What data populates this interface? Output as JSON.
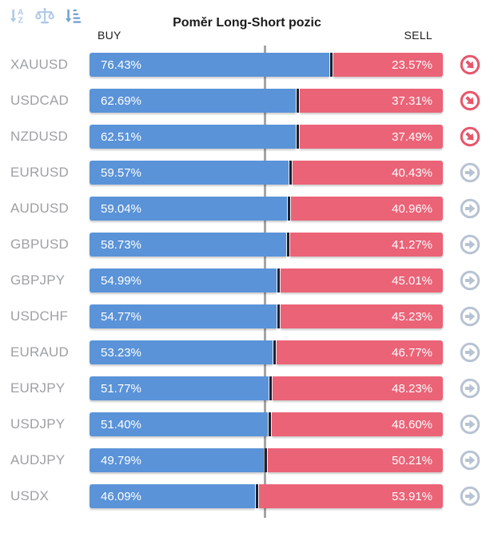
{
  "title": "Poměr Long-Short pozic",
  "columns": {
    "buy": "BUY",
    "sell": "SELL"
  },
  "toolbar": {
    "icons": [
      "sort-alphabetical-icon",
      "balance-scale-icon",
      "sort-by-amount-icon"
    ],
    "active_icon": "sort-by-amount-icon"
  },
  "colors": {
    "buy_bar": "#5A93D8",
    "sell_bar": "#EB6377",
    "bar_divider": "#20202F",
    "trend_down_icon": "#E8566C",
    "trend_neutral_icon": "#B8C3D2",
    "pair_label": "#9EA0A3",
    "center_line": "#A4A4A4"
  },
  "chart_data": {
    "type": "bar",
    "orientation": "horizontal",
    "stacked": true,
    "title": "Poměr Long-Short pozic",
    "xlim": [
      0,
      100
    ],
    "center_marker": 50,
    "legend_position": "top",
    "categories": [
      "XAUUSD",
      "USDCAD",
      "NZDUSD",
      "EURUSD",
      "AUDUSD",
      "GBPUSD",
      "GBPJPY",
      "USDCHF",
      "EURAUD",
      "EURJPY",
      "USDJPY",
      "AUDJPY",
      "USDX"
    ],
    "series": [
      {
        "name": "BUY",
        "color": "#5A93D8",
        "values": [
          76.43,
          62.69,
          62.51,
          59.57,
          59.04,
          58.73,
          54.99,
          54.77,
          53.23,
          51.77,
          51.4,
          49.79,
          46.09
        ]
      },
      {
        "name": "SELL",
        "color": "#EB6377",
        "values": [
          23.57,
          37.31,
          37.49,
          40.43,
          40.96,
          41.27,
          45.01,
          45.23,
          46.77,
          48.23,
          48.6,
          50.21,
          53.91
        ]
      }
    ],
    "rows": [
      {
        "pair": "XAUUSD",
        "buy": 76.43,
        "sell": 23.57,
        "buy_label": "76.43%",
        "sell_label": "23.57%",
        "trend": "down"
      },
      {
        "pair": "USDCAD",
        "buy": 62.69,
        "sell": 37.31,
        "buy_label": "62.69%",
        "sell_label": "37.31%",
        "trend": "down"
      },
      {
        "pair": "NZDUSD",
        "buy": 62.51,
        "sell": 37.49,
        "buy_label": "62.51%",
        "sell_label": "37.49%",
        "trend": "down"
      },
      {
        "pair": "EURUSD",
        "buy": 59.57,
        "sell": 40.43,
        "buy_label": "59.57%",
        "sell_label": "40.43%",
        "trend": "right"
      },
      {
        "pair": "AUDUSD",
        "buy": 59.04,
        "sell": 40.96,
        "buy_label": "59.04%",
        "sell_label": "40.96%",
        "trend": "right"
      },
      {
        "pair": "GBPUSD",
        "buy": 58.73,
        "sell": 41.27,
        "buy_label": "58.73%",
        "sell_label": "41.27%",
        "trend": "right"
      },
      {
        "pair": "GBPJPY",
        "buy": 54.99,
        "sell": 45.01,
        "buy_label": "54.99%",
        "sell_label": "45.01%",
        "trend": "right"
      },
      {
        "pair": "USDCHF",
        "buy": 54.77,
        "sell": 45.23,
        "buy_label": "54.77%",
        "sell_label": "45.23%",
        "trend": "right"
      },
      {
        "pair": "EURAUD",
        "buy": 53.23,
        "sell": 46.77,
        "buy_label": "53.23%",
        "sell_label": "46.77%",
        "trend": "right"
      },
      {
        "pair": "EURJPY",
        "buy": 51.77,
        "sell": 48.23,
        "buy_label": "51.77%",
        "sell_label": "48.23%",
        "trend": "right"
      },
      {
        "pair": "USDJPY",
        "buy": 51.4,
        "sell": 48.6,
        "buy_label": "51.40%",
        "sell_label": "48.60%",
        "trend": "right"
      },
      {
        "pair": "AUDJPY",
        "buy": 49.79,
        "sell": 50.21,
        "buy_label": "49.79%",
        "sell_label": "50.21%",
        "trend": "right"
      },
      {
        "pair": "USDX",
        "buy": 46.09,
        "sell": 53.91,
        "buy_label": "46.09%",
        "sell_label": "53.91%",
        "trend": "right"
      }
    ]
  }
}
